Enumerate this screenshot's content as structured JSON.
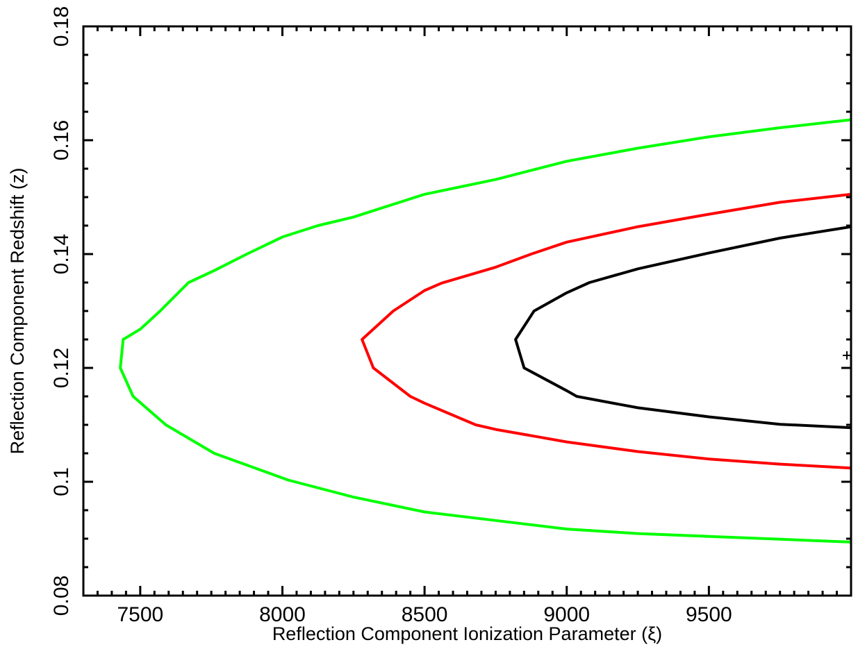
{
  "chart_data": {
    "type": "line",
    "title": "",
    "xlabel": "Reflection Component Ionization Parameter (ξ)",
    "ylabel": "Reflection Component Redshift (z)",
    "xlim": [
      7300,
      10000
    ],
    "ylim": [
      0.08,
      0.18
    ],
    "x_ticks": [
      7500,
      8000,
      8500,
      9000,
      9500
    ],
    "x_tick_labels": [
      "7500",
      "8000",
      "8500",
      "9000",
      "9500"
    ],
    "y_ticks": [
      0.08,
      0.1,
      0.12,
      0.14,
      0.16,
      0.18
    ],
    "y_tick_labels": [
      "0.08",
      "0.1",
      "0.12",
      "0.14",
      "0.16",
      "0.18"
    ],
    "grid": false,
    "legend": "none",
    "best_fit_marker": {
      "x": 10000,
      "y": 0.1222,
      "symbol": "+"
    },
    "series": [
      {
        "color": "#00ff00",
        "points": [
          [
            10000,
            0.1636
          ],
          [
            9750,
            0.1622
          ],
          [
            9500,
            0.1606
          ],
          [
            9250,
            0.1586
          ],
          [
            9000,
            0.1563
          ],
          [
            8750,
            0.1531
          ],
          [
            8500,
            0.1505
          ],
          [
            8250,
            0.1465
          ],
          [
            8125,
            0.145
          ],
          [
            8000,
            0.143
          ],
          [
            7875,
            0.14
          ],
          [
            7760,
            0.1371
          ],
          [
            7670,
            0.135
          ],
          [
            7570,
            0.13
          ],
          [
            7500,
            0.1268
          ],
          [
            7440,
            0.125
          ],
          [
            7430,
            0.12
          ],
          [
            7475,
            0.115
          ],
          [
            7590,
            0.11
          ],
          [
            7760,
            0.105
          ],
          [
            8020,
            0.1003
          ],
          [
            8250,
            0.0973
          ],
          [
            8500,
            0.0947
          ],
          [
            8750,
            0.0932
          ],
          [
            9000,
            0.0917
          ],
          [
            9250,
            0.0909
          ],
          [
            9500,
            0.0904
          ],
          [
            9750,
            0.0899
          ],
          [
            10000,
            0.0894
          ]
        ]
      },
      {
        "color": "#ff0000",
        "points": [
          [
            10000,
            0.1505
          ],
          [
            9750,
            0.1491
          ],
          [
            9500,
            0.147
          ],
          [
            9250,
            0.1448
          ],
          [
            9000,
            0.1421
          ],
          [
            8875,
            0.14
          ],
          [
            8750,
            0.1377
          ],
          [
            8560,
            0.1349
          ],
          [
            8500,
            0.1336
          ],
          [
            8390,
            0.13
          ],
          [
            8280,
            0.125
          ],
          [
            8320,
            0.12
          ],
          [
            8450,
            0.115
          ],
          [
            8500,
            0.1138
          ],
          [
            8680,
            0.11
          ],
          [
            8750,
            0.1092
          ],
          [
            9000,
            0.107
          ],
          [
            9250,
            0.1053
          ],
          [
            9500,
            0.104
          ],
          [
            9750,
            0.1031
          ],
          [
            10000,
            0.1024
          ]
        ]
      },
      {
        "color": "#000000",
        "points": [
          [
            10000,
            0.1448
          ],
          [
            9750,
            0.1428
          ],
          [
            9500,
            0.1402
          ],
          [
            9250,
            0.1374
          ],
          [
            9080,
            0.135
          ],
          [
            9000,
            0.1332
          ],
          [
            8885,
            0.13
          ],
          [
            8820,
            0.125
          ],
          [
            8850,
            0.12
          ],
          [
            9000,
            0.116
          ],
          [
            9035,
            0.115
          ],
          [
            9250,
            0.113
          ],
          [
            9500,
            0.1114
          ],
          [
            9750,
            0.1101
          ],
          [
            10000,
            0.1095
          ]
        ]
      }
    ]
  }
}
